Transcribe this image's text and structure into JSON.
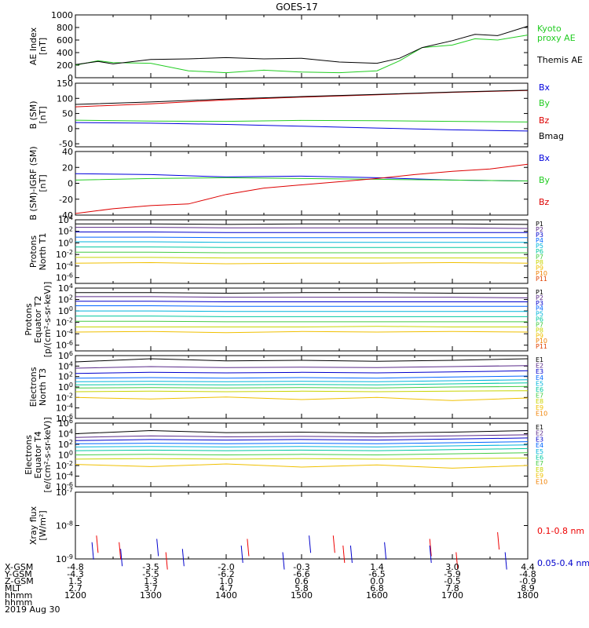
{
  "title": "GOES-17",
  "date": "2019 Aug 30",
  "footer": {
    "row_labels": [
      "X-GSM",
      "Y-GSM",
      "Z-GSM",
      "MLT",
      "hhmm"
    ],
    "columns": [
      {
        "hhmm": "1200",
        "x": "-4.8",
        "y": "-4.3",
        "z": "1.5",
        "mlt": "2.7"
      },
      {
        "hhmm": "1300",
        "x": "-3.5",
        "y": "-5.5",
        "z": "1.3",
        "mlt": "3.7"
      },
      {
        "hhmm": "1400",
        "x": "-2.0",
        "y": "-6.2",
        "z": "1.0",
        "mlt": "4.7"
      },
      {
        "hhmm": "1500",
        "x": "-0.3",
        "y": "-6.6",
        "z": "0.6",
        "mlt": "5.8"
      },
      {
        "hhmm": "1600",
        "x": "1.4",
        "y": "-6.5",
        "z": "0.0",
        "mlt": "6.8"
      },
      {
        "hhmm": "1700",
        "x": "3.0",
        "y": "-5.9",
        "z": "-0.5",
        "mlt": "7.8"
      },
      {
        "hhmm": "1800",
        "x": "4.4",
        "y": "-4.8",
        "z": "-0.9",
        "mlt": "8.9"
      }
    ]
  },
  "colors": {
    "kyoto": "#22cc22",
    "themis": "#000000",
    "bx": "#0000dd",
    "by": "#22cc22",
    "bz": "#dd0000",
    "bmag": "#000000",
    "xray_long": "#ee0000",
    "xray_short": "#0000cc",
    "channel_palette": [
      "#000000",
      "#5a2a8a",
      "#0000cc",
      "#0066ff",
      "#00b4dc",
      "#00c8a0",
      "#44cc44",
      "#c8d400",
      "#f0c000",
      "#f08000",
      "#e04000",
      "#cc0000"
    ]
  },
  "chart_data": [
    {
      "type": "line",
      "id": "ae",
      "ylabel": [
        "AE Index",
        "[nT]"
      ],
      "yscale": "linear",
      "ylim": [
        0,
        1000
      ],
      "yticks": [
        "0",
        "200",
        "400",
        "600",
        "800",
        "1000"
      ],
      "x_range": [
        "1200",
        "1800"
      ],
      "grid": false,
      "series": [
        {
          "name": "Kyoto proxy AE",
          "label_lines": [
            "Kyoto",
            "proxy AE"
          ],
          "color": "#22cc22",
          "x": [
            0,
            0.3,
            0.5,
            1.0,
            1.5,
            2.0,
            2.5,
            3.0,
            3.5,
            4.0,
            4.3,
            4.6,
            5.0,
            5.3,
            5.6,
            6.0
          ],
          "y": [
            200,
            270,
            240,
            230,
            110,
            80,
            120,
            90,
            80,
            110,
            270,
            480,
            520,
            620,
            600,
            680
          ]
        },
        {
          "name": "Themis AE",
          "label_lines": [
            "Themis AE"
          ],
          "color": "#000000",
          "x": [
            0,
            0.3,
            0.5,
            1.0,
            1.5,
            2.0,
            2.5,
            3.0,
            3.5,
            4.0,
            4.3,
            4.6,
            5.0,
            5.3,
            5.6,
            6.0
          ],
          "y": [
            210,
            260,
            220,
            290,
            300,
            320,
            300,
            310,
            250,
            230,
            310,
            480,
            590,
            690,
            670,
            820
          ]
        }
      ]
    },
    {
      "type": "line",
      "id": "bsm",
      "ylabel": [
        "B (SM)",
        "[nT]"
      ],
      "yscale": "linear",
      "ylim": [
        -60,
        150
      ],
      "yticks": [
        "-50",
        "0",
        "50",
        "100",
        "150"
      ],
      "x_range": [
        "1200",
        "1800"
      ],
      "grid": false,
      "series": [
        {
          "name": "Bx",
          "color": "#0000dd",
          "x": [
            0,
            1,
            2,
            3,
            4,
            5,
            6
          ],
          "y": [
            20,
            18,
            14,
            8,
            2,
            -4,
            -8
          ]
        },
        {
          "name": "By",
          "color": "#22cc22",
          "x": [
            0,
            1,
            2,
            3,
            4,
            5,
            6
          ],
          "y": [
            28,
            25,
            24,
            27,
            26,
            24,
            22
          ]
        },
        {
          "name": "Bz",
          "color": "#dd0000",
          "x": [
            0,
            1,
            2,
            3,
            4,
            5,
            6
          ],
          "y": [
            72,
            82,
            95,
            104,
            112,
            120,
            126
          ]
        },
        {
          "name": "Bmag",
          "color": "#000000",
          "x": [
            0,
            1,
            2,
            3,
            4,
            5,
            6
          ],
          "y": [
            80,
            88,
            98,
            106,
            113,
            121,
            127
          ]
        }
      ]
    },
    {
      "type": "line",
      "id": "bdiff",
      "ylabel": [
        "B (SM)-IGRF (SM)",
        "[nT]"
      ],
      "yscale": "linear",
      "ylim": [
        -40,
        40
      ],
      "yticks": [
        "-40",
        "-20",
        "0",
        "20",
        "40"
      ],
      "x_range": [
        "1200",
        "1800"
      ],
      "grid": false,
      "series": [
        {
          "name": "Bx",
          "color": "#0000dd",
          "x": [
            0,
            1,
            2,
            3,
            4,
            5,
            6
          ],
          "y": [
            12,
            11,
            8,
            9,
            7,
            4,
            3
          ]
        },
        {
          "name": "By",
          "color": "#22cc22",
          "x": [
            0,
            1,
            2,
            3,
            4,
            5,
            6
          ],
          "y": [
            4,
            6,
            7,
            6,
            5,
            4,
            3
          ]
        },
        {
          "name": "Bz",
          "color": "#dd0000",
          "x": [
            0,
            0.5,
            1.0,
            1.5,
            2.0,
            2.5,
            3.0,
            3.5,
            4.0,
            4.5,
            5.0,
            5.5,
            6.0
          ],
          "y": [
            -38,
            -32,
            -28,
            -26,
            -14,
            -6,
            -2,
            2,
            6,
            11,
            15,
            18,
            24
          ]
        }
      ]
    },
    {
      "type": "line",
      "id": "pn",
      "ylabel": [
        "Protons",
        "North T1"
      ],
      "yscale": "log",
      "ylim": [
        -7,
        4
      ],
      "yticks": [
        "10^4",
        "10^2",
        "10^0",
        "10^-2",
        "10^-4",
        "10^-6"
      ],
      "x_range": [
        "1200",
        "1800"
      ],
      "grid": false,
      "series": [
        {
          "name": "P1",
          "y": [
            3.3,
            3.3,
            3.2,
            3.3,
            3.3,
            3.3,
            3.2
          ]
        },
        {
          "name": "P2",
          "y": [
            2.7,
            2.7,
            2.6,
            2.6,
            2.6,
            2.6,
            2.5
          ]
        },
        {
          "name": "P3",
          "y": [
            1.9,
            1.9,
            1.8,
            1.8,
            1.8,
            1.8,
            1.8
          ]
        },
        {
          "name": "P4",
          "y": [
            1.0,
            1.0,
            0.9,
            0.9,
            0.9,
            0.9,
            0.9
          ]
        },
        {
          "name": "P5",
          "y": [
            0.2,
            0.2,
            0.1,
            0.1,
            0.1,
            0.1,
            0.1
          ]
        },
        {
          "name": "P6",
          "y": [
            -0.7,
            -0.7,
            -0.8,
            -0.8,
            -0.8,
            -0.8,
            -0.8
          ]
        },
        {
          "name": "P7",
          "y": [
            -1.6,
            -1.6,
            -1.7,
            -1.7,
            -1.7,
            -1.7,
            -1.7
          ]
        },
        {
          "name": "P8",
          "y": [
            -2.5,
            -2.5,
            -2.6,
            -2.6,
            -2.6,
            -2.6,
            -2.6
          ]
        },
        {
          "name": "P9",
          "y": [
            -3.5,
            -3.4,
            -3.6,
            -3.5,
            -3.5,
            -3.4,
            -3.5
          ]
        },
        {
          "name": "P10",
          "y": []
        },
        {
          "name": "P11",
          "y": []
        }
      ]
    },
    {
      "type": "line",
      "id": "pe",
      "ylabel": [
        "Protons",
        "Equator T2",
        "[p/(cm²-s-sr-keV)]"
      ],
      "yscale": "log",
      "ylim": [
        -7,
        4
      ],
      "yticks": [
        "10^4",
        "10^2",
        "10^0",
        "10^-2",
        "10^-4",
        "10^-6"
      ],
      "x_range": [
        "1200",
        "1800"
      ],
      "grid": false,
      "series": [
        {
          "name": "P1",
          "y": [
            3.2,
            3.2,
            3.1,
            3.2,
            3.2,
            3.1,
            3.1
          ]
        },
        {
          "name": "P2",
          "y": [
            2.5,
            2.5,
            2.4,
            2.4,
            2.4,
            2.4,
            2.3
          ]
        },
        {
          "name": "P3",
          "y": [
            1.7,
            1.7,
            1.6,
            1.6,
            1.6,
            1.6,
            1.6
          ]
        },
        {
          "name": "P4",
          "y": [
            0.9,
            0.9,
            0.8,
            0.8,
            0.8,
            0.8,
            0.8
          ]
        },
        {
          "name": "P5",
          "y": [
            0.0,
            0.0,
            -0.1,
            -0.1,
            -0.1,
            -0.1,
            -0.1
          ]
        },
        {
          "name": "P6",
          "y": [
            -0.9,
            -0.9,
            -1.0,
            -1.0,
            -1.0,
            -1.0,
            -1.0
          ]
        },
        {
          "name": "P7",
          "y": [
            -1.8,
            -1.8,
            -1.9,
            -1.9,
            -1.9,
            -1.9,
            -1.9
          ]
        },
        {
          "name": "P8",
          "y": [
            -2.8,
            -2.8,
            -2.8,
            -2.8,
            -2.7,
            -2.8,
            -2.8
          ]
        },
        {
          "name": "P9",
          "y": [
            -3.7,
            -3.6,
            -3.8,
            -3.6,
            -3.7,
            -3.6,
            -3.7
          ]
        },
        {
          "name": "P10",
          "y": []
        },
        {
          "name": "P11",
          "y": []
        }
      ]
    },
    {
      "type": "line",
      "id": "en",
      "ylabel": [
        "Electrons",
        "North T3"
      ],
      "yscale": "log",
      "ylim": [
        -6,
        6
      ],
      "yticks": [
        "10^6",
        "10^4",
        "10^2",
        "10^0",
        "10^-2",
        "10^-4",
        "10^-6"
      ],
      "x_range": [
        "1200",
        "1800"
      ],
      "grid": false,
      "series": [
        {
          "name": "E1",
          "y": [
            4.8,
            5.4,
            5.0,
            5.1,
            4.9,
            5.1,
            5.4
          ]
        },
        {
          "name": "E2",
          "y": [
            3.6,
            3.9,
            3.7,
            3.8,
            3.7,
            3.9,
            4.1
          ]
        },
        {
          "name": "E3",
          "y": [
            2.6,
            2.8,
            2.7,
            2.8,
            2.7,
            2.9,
            3.1
          ]
        },
        {
          "name": "E4",
          "y": [
            1.7,
            1.8,
            1.7,
            1.8,
            1.7,
            1.9,
            2.1
          ]
        },
        {
          "name": "E5",
          "y": [
            1.0,
            1.1,
            1.0,
            1.1,
            1.0,
            1.2,
            1.4
          ]
        },
        {
          "name": "E6",
          "y": [
            0.4,
            0.5,
            0.4,
            0.5,
            0.4,
            0.6,
            0.8
          ]
        },
        {
          "name": "E7",
          "y": [
            -0.2,
            -0.1,
            -0.2,
            -0.1,
            -0.2,
            0.0,
            0.1
          ]
        },
        {
          "name": "E8",
          "y": [
            -0.9,
            -0.8,
            -0.9,
            -0.8,
            -0.9,
            -0.8,
            -0.7
          ]
        },
        {
          "name": "E9",
          "y": [
            -2.0,
            -2.3,
            -1.9,
            -2.4,
            -2.0,
            -2.6,
            -2.1
          ]
        },
        {
          "name": "E10",
          "y": []
        }
      ]
    },
    {
      "type": "line",
      "id": "ee",
      "ylabel": [
        "Electrons",
        "Equator T4",
        "[e/(cm²-s-sr-keV)]"
      ],
      "yscale": "log",
      "ylim": [
        -6,
        6
      ],
      "yticks": [
        "10^6",
        "10^4",
        "10^2",
        "10^0",
        "10^-2",
        "10^-4",
        "10^-6"
      ],
      "x_range": [
        "1200",
        "1800"
      ],
      "grid": false,
      "series": [
        {
          "name": "E1",
          "y": [
            4.0,
            4.6,
            4.2,
            4.3,
            4.1,
            4.3,
            4.6
          ]
        },
        {
          "name": "E2",
          "y": [
            3.3,
            3.6,
            3.4,
            3.5,
            3.4,
            3.6,
            3.8
          ]
        },
        {
          "name": "E3",
          "y": [
            2.7,
            2.9,
            2.8,
            2.9,
            2.8,
            3.0,
            3.2
          ]
        },
        {
          "name": "E4",
          "y": [
            2.1,
            2.2,
            2.1,
            2.2,
            2.1,
            2.3,
            2.5
          ]
        },
        {
          "name": "E5",
          "y": [
            1.5,
            1.6,
            1.5,
            1.6,
            1.5,
            1.7,
            1.9
          ]
        },
        {
          "name": "E6",
          "y": [
            0.8,
            0.9,
            0.8,
            0.9,
            0.8,
            1.0,
            1.2
          ]
        },
        {
          "name": "E7",
          "y": [
            0.0,
            0.1,
            0.0,
            0.1,
            0.0,
            0.2,
            0.4
          ]
        },
        {
          "name": "E8",
          "y": [
            -0.8,
            -0.7,
            -0.8,
            -0.7,
            -0.8,
            -0.7,
            -0.6
          ]
        },
        {
          "name": "E9",
          "y": [
            -1.8,
            -2.2,
            -1.7,
            -2.3,
            -1.9,
            -2.5,
            -2.0
          ]
        },
        {
          "name": "E10",
          "y": []
        }
      ]
    },
    {
      "type": "line",
      "id": "xray",
      "ylabel": [
        "Xray flux",
        "[W/m²]"
      ],
      "yscale": "log",
      "ylim": [
        -9,
        -7
      ],
      "yticks": [
        "10^-7",
        "10^-8",
        "10^-9"
      ],
      "x_range": [
        "1200",
        "1800"
      ],
      "grid": false,
      "series": [
        {
          "name": "0.1-0.8 nm",
          "color": "#ee0000",
          "x": [
            0.28,
            0.58,
            1.2,
            2.28,
            3.42,
            3.55,
            4.7,
            5.05,
            5.6
          ],
          "y": [
            -8.3,
            -8.5,
            -8.8,
            -8.4,
            -8.3,
            -8.6,
            -8.4,
            -8.8,
            -8.2
          ]
        },
        {
          "name": "0.05-0.4 nm",
          "color": "#0000cc",
          "x": [
            0.22,
            0.6,
            1.08,
            1.42,
            2.2,
            2.75,
            3.1,
            3.65,
            4.1,
            4.7,
            5.7
          ],
          "y": [
            -8.5,
            -8.7,
            -8.4,
            -8.7,
            -8.6,
            -8.8,
            -8.3,
            -8.6,
            -8.5,
            -8.6,
            -8.8
          ]
        }
      ]
    }
  ]
}
